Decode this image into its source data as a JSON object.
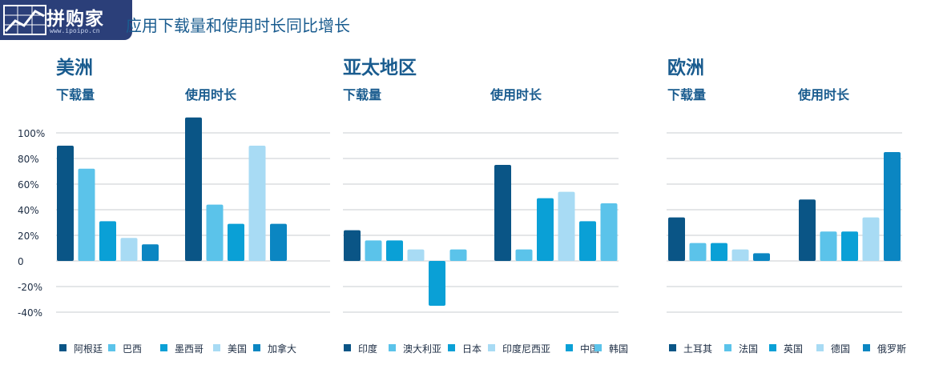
{
  "header": {
    "title": "应用下载量和使用时长同比增长",
    "logo_text": "拼购家",
    "logo_url": "www.ipoipo.cn"
  },
  "chart_data": {
    "type": "bar",
    "ylim": [
      -40,
      110
    ],
    "y_ticks": [
      "100%",
      "80%",
      "60%",
      "40%",
      "20%",
      "0",
      "-20%",
      "-40%"
    ],
    "grid": true,
    "legend_placement": "bottom",
    "panels": [
      {
        "title": "美洲",
        "groups": [
          {
            "label": "下载量",
            "values": [
              90,
              72,
              31,
              18,
              13
            ]
          },
          {
            "label": "使用时长",
            "values": [
              112,
              44,
              29,
              90,
              29
            ]
          }
        ],
        "legend": [
          "阿根廷",
          "巴西",
          "墨西哥",
          "美国",
          "加拿大"
        ]
      },
      {
        "title": "亚太地区",
        "groups": [
          {
            "label": "下载量",
            "values": [
              24,
              16,
              16,
              9,
              -35,
              9
            ]
          },
          {
            "label": "使用时长",
            "values": [
              75,
              9,
              49,
              54,
              31,
              45
            ]
          }
        ],
        "legend": [
          "印度",
          "澳大利亚",
          "日本",
          "印度尼西亚",
          "中国",
          "韩国"
        ]
      },
      {
        "title": "欧洲",
        "groups": [
          {
            "label": "下载量",
            "values": [
              34,
              14,
              14,
              9,
              6
            ]
          },
          {
            "label": "使用时长",
            "values": [
              48,
              23,
              23,
              34,
              85
            ]
          }
        ],
        "legend": [
          "土耳其",
          "法国",
          "英国",
          "德国",
          "俄罗斯"
        ]
      }
    ],
    "colors": [
      "#0a5586",
      "#5bc3ea",
      "#0aa0d6",
      "#a8dbf4",
      "#0b86c2",
      "#0b86c2"
    ],
    "panel_colors": [
      [
        "#0a5586",
        "#5bc3ea",
        "#0aa0d6",
        "#a8dbf4",
        "#0b86c2"
      ],
      [
        "#0a5586",
        "#5bc3ea",
        "#0aa0d6",
        "#a8dbf4",
        "#0aa0d6",
        "#5bc3ea",
        "#0b86c2"
      ],
      [
        "#0a5586",
        "#5bc3ea",
        "#0aa0d6",
        "#a8dbf4",
        "#0b86c2"
      ]
    ]
  }
}
